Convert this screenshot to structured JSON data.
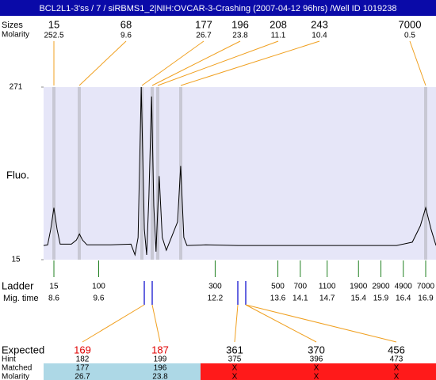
{
  "header": {
    "title": "BCL2L1-3'ss / 7 / siRBMS1_2|NIH:OVCAR-3-Crashing (2007-04-12 96hrs) /Well ID 1019238"
  },
  "peaks": {
    "size_label": "Sizes",
    "molarity_label": "Molarity",
    "sizes": [
      15,
      68,
      177,
      196,
      208,
      243,
      7000
    ],
    "molarity": [
      252.5,
      9.6,
      26.7,
      23.8,
      11.1,
      10.4,
      0.5
    ]
  },
  "chart_data": {
    "type": "line",
    "ylabel": "Fluo.",
    "color": "#000000",
    "x": [
      8.37,
      8.46,
      8.53,
      8.6,
      8.67,
      8.74,
      8.99,
      9.1,
      9.17,
      9.24,
      9.34,
      9.87,
      10.32,
      10.41,
      10.48,
      10.55,
      10.62,
      10.67,
      10.72,
      10.78,
      10.83,
      10.88,
      10.95,
      11.02,
      11.11,
      11.36,
      11.43,
      11.5,
      11.57,
      11.99,
      12.71,
      14.48,
      16.25,
      16.6,
      16.78,
      16.9,
      17.02,
      17.13
    ],
    "values": [
      36,
      37,
      60,
      92,
      60,
      38,
      38,
      44,
      53,
      44,
      37,
      37,
      38,
      22,
      48,
      271,
      60,
      22,
      107,
      257,
      95,
      27,
      139,
      48,
      29,
      71,
      154,
      48,
      36,
      37,
      36,
      36,
      36,
      41,
      65,
      92,
      60,
      36
    ],
    "xlim": [
      8.37,
      17.13
    ],
    "ylim": [
      15,
      271
    ],
    "yticks": [
      15,
      271
    ]
  },
  "ladder": {
    "label": "Ladder",
    "time_label": "Mig. time",
    "sizes": [
      15,
      100,
      300,
      500,
      700,
      1100,
      1900,
      2900,
      4900,
      7000
    ],
    "times": [
      8.6,
      9.6,
      12.2,
      13.6,
      14.1,
      14.7,
      15.4,
      15.9,
      16.4,
      16.9
    ]
  },
  "expected": {
    "labels": [
      "Expected",
      "Hint",
      "Matched",
      "Molarity"
    ],
    "expected": [
      169,
      187,
      361,
      370,
      456
    ],
    "hint": [
      182,
      199,
      375,
      396,
      473
    ],
    "matched": [
      177,
      196,
      "X",
      "X",
      "X"
    ],
    "molarity": [
      26.7,
      23.8,
      "X",
      "X",
      "X"
    ]
  }
}
